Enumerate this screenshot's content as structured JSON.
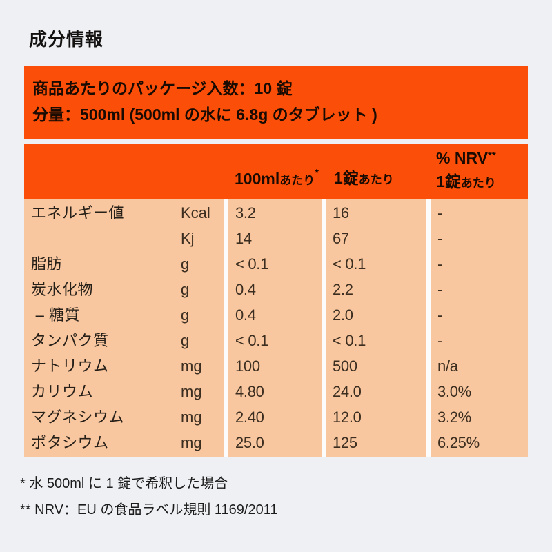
{
  "title": "成分情報",
  "banner": {
    "line1": "商品あたりのパッケージ入数：10 錠",
    "line2": "分量：500ml (500ml の水に 6.8g のタブレット )"
  },
  "table": {
    "header": {
      "per_100ml": {
        "main": "100ml",
        "suffix": "あたり",
        "sup": "*"
      },
      "per_tablet": {
        "main": "1錠",
        "suffix": "あたり"
      },
      "nrv": {
        "line1_main": "% NRV",
        "line1_sup": "**",
        "line2_main": "1錠",
        "line2_suffix": "あたり"
      }
    },
    "rows": [
      {
        "label": "エネルギー値",
        "unit": "Kcal",
        "per_100ml": "3.2",
        "per_tablet": "16",
        "nrv": "-"
      },
      {
        "label": "",
        "unit": "Kj",
        "per_100ml": "14",
        "per_tablet": "67",
        "nrv": "-"
      },
      {
        "label": "脂肪",
        "unit": "g",
        "per_100ml": "< 0.1",
        "per_tablet": "< 0.1",
        "nrv": "-"
      },
      {
        "label": "炭水化物",
        "unit": "g",
        "per_100ml": "0.4",
        "per_tablet": "2.2",
        "nrv": "-"
      },
      {
        "label": " – 糖質",
        "unit": "g",
        "per_100ml": "0.4",
        "per_tablet": "2.0",
        "nrv": "-"
      },
      {
        "label": "タンパク質",
        "unit": "g",
        "per_100ml": "< 0.1",
        "per_tablet": "< 0.1",
        "nrv": "-"
      },
      {
        "label": "ナトリウム",
        "unit": "mg",
        "per_100ml": "100",
        "per_tablet": "500",
        "nrv": "n/a"
      },
      {
        "label": "カリウム",
        "unit": "mg",
        "per_100ml": "4.80",
        "per_tablet": "24.0",
        "nrv": "3.0%"
      },
      {
        "label": "マグネシウム",
        "unit": "mg",
        "per_100ml": "2.40",
        "per_tablet": "12.0",
        "nrv": "3.2%"
      },
      {
        "label": "ポタシウム",
        "unit": "mg",
        "per_100ml": "25.0",
        "per_tablet": "125",
        "nrv": "6.25%"
      }
    ]
  },
  "footnotes": [
    "* 水 500ml に 1 錠で希釈した場合",
    "** NRV：EU の食品ラベル規則 1169/2011"
  ],
  "colors": {
    "accent_orange": "#fb4e09",
    "table_body_peach": "#f8c79f",
    "page_background": "#eef0f4",
    "divider_white": "#fcfcfd"
  }
}
